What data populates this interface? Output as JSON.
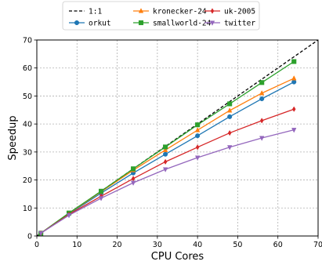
{
  "chart_data": {
    "type": "line",
    "title": "",
    "xlabel": "CPU Cores",
    "ylabel": "Speedup",
    "xlim": [
      0,
      70
    ],
    "ylim": [
      0,
      70
    ],
    "xticks": [
      0,
      10,
      20,
      30,
      40,
      50,
      60,
      70
    ],
    "yticks": [
      0,
      10,
      20,
      30,
      40,
      50,
      60,
      70
    ],
    "grid": true,
    "legend_position": "top-center",
    "legend_columns": 3,
    "x": [
      1,
      8,
      16,
      24,
      32,
      40,
      48,
      56,
      64
    ],
    "reference_line": {
      "name": "1:1",
      "color": "#000000",
      "style": "dashed",
      "x": [
        0,
        70
      ],
      "y": [
        0,
        70
      ]
    },
    "series": [
      {
        "name": "orkut",
        "color": "#1f77b4",
        "marker": "circle",
        "values": [
          1,
          7.9,
          15.3,
          22.5,
          29.2,
          35.8,
          42.6,
          49.0,
          55.0
        ]
      },
      {
        "name": "kronecker-24",
        "color": "#ff7f0e",
        "marker": "triangle-up",
        "values": [
          1,
          8.1,
          15.8,
          23.5,
          30.7,
          37.8,
          44.8,
          51.0,
          56.3
        ]
      },
      {
        "name": "smallworld-24",
        "color": "#2ca02c",
        "marker": "square",
        "values": [
          1,
          8.2,
          16.0,
          24.0,
          31.8,
          39.7,
          47.2,
          54.8,
          62.3
        ]
      },
      {
        "name": "uk-2005",
        "color": "#d62728",
        "marker": "diamond",
        "values": [
          1,
          7.7,
          14.2,
          20.5,
          26.5,
          31.7,
          36.8,
          41.2,
          45.3
        ]
      },
      {
        "name": "twitter",
        "color": "#9467bd",
        "marker": "triangle-down",
        "values": [
          1,
          7.4,
          13.5,
          19.0,
          23.8,
          28.0,
          31.7,
          35.0,
          37.9
        ]
      }
    ]
  }
}
